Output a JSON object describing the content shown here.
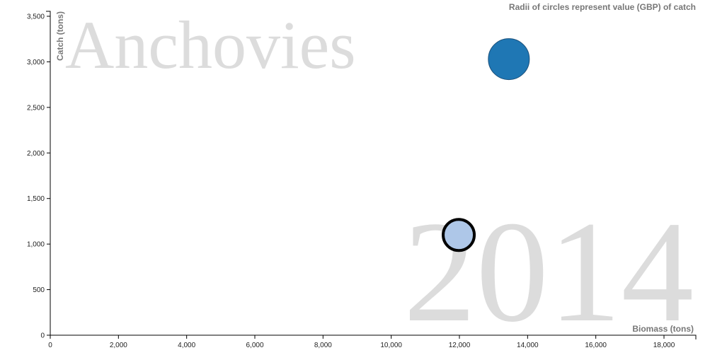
{
  "chart_data": {
    "type": "scatter",
    "title": "",
    "species": "Anchovies",
    "year": "2014",
    "note": "Radii of circles represent value (GBP) of catch",
    "xlabel": "Biomass (tons)",
    "ylabel": "Catch (tons)",
    "xlim": [
      0,
      18000
    ],
    "ylim": [
      0,
      3500
    ],
    "xticks": [
      0,
      2000,
      4000,
      6000,
      8000,
      10000,
      12000,
      14000,
      16000,
      18000
    ],
    "yticks": [
      0,
      500,
      1000,
      1500,
      2000,
      2500,
      3000,
      3500
    ],
    "grid": false,
    "points": [
      {
        "x": 13450,
        "y": 3030,
        "color": "#1f77b4",
        "highlighted": false
      },
      {
        "x": 11980,
        "y": 1100,
        "color": "#aec7e8",
        "highlighted": true
      }
    ]
  }
}
